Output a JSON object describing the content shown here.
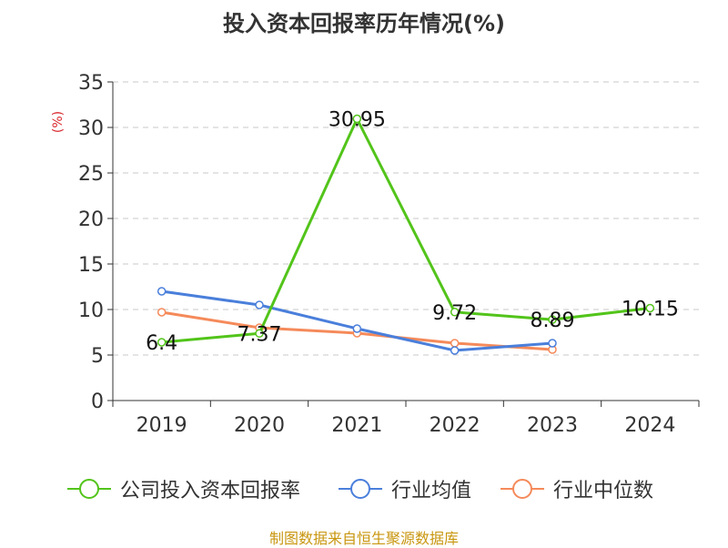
{
  "chart_data": {
    "type": "line",
    "title": "投入资本回报率历年情况(%)",
    "ylabel": "(%)",
    "xlabel": "",
    "categories": [
      "2019",
      "2020",
      "2021",
      "2022",
      "2023",
      "2024"
    ],
    "ylim": [
      0,
      35
    ],
    "yticks": [
      0,
      5,
      10,
      15,
      20,
      25,
      30,
      35
    ],
    "grid": true,
    "legend_position": "bottom",
    "series": [
      {
        "name": "公司投入资本回报率",
        "color": "#52c41a",
        "values": [
          6.4,
          7.37,
          30.95,
          9.72,
          8.89,
          10.15
        ],
        "labels": [
          "6.4",
          "7.37",
          "30.95",
          "9.72",
          "8.89",
          "10.15"
        ]
      },
      {
        "name": "行业均值",
        "color": "#4a7fdb",
        "values": [
          12.0,
          10.5,
          7.9,
          5.5,
          6.3,
          null
        ]
      },
      {
        "name": "行业中位数",
        "color": "#f58a5a",
        "values": [
          9.7,
          8.0,
          7.4,
          6.3,
          5.6,
          null
        ]
      }
    ]
  },
  "source": "制图数据来自恒生聚源数据库"
}
